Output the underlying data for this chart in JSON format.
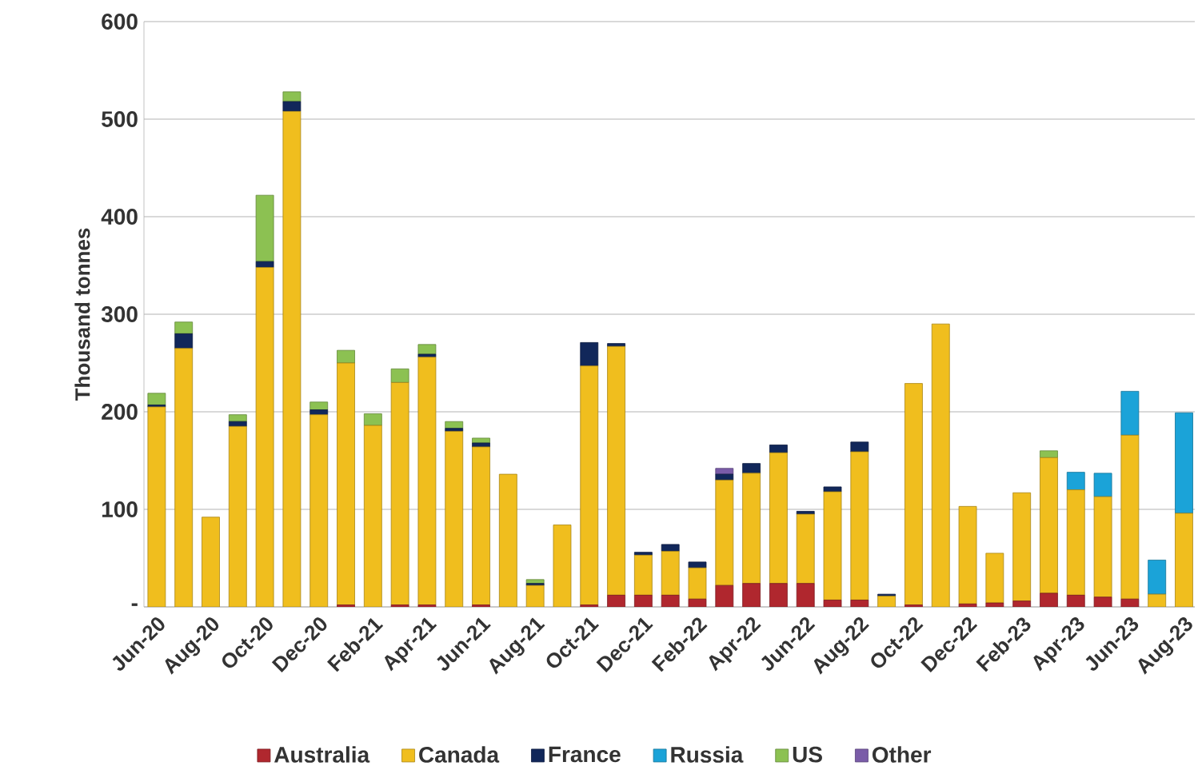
{
  "chart_data": {
    "type": "bar",
    "stacked": true,
    "ylabel": "Thousand tonnes",
    "categories": [
      "Jun-20",
      null,
      "Aug-20",
      null,
      "Oct-20",
      null,
      "Dec-20",
      null,
      "Feb-21",
      null,
      "Apr-21",
      null,
      "Jun-21",
      null,
      "Aug-21",
      null,
      "Oct-21",
      null,
      "Dec-21",
      null,
      "Feb-22",
      null,
      "Apr-22",
      null,
      "Jun-22",
      null,
      "Aug-22",
      null,
      "Oct-22",
      null,
      "Dec-22",
      null,
      "Feb-23",
      null,
      "Apr-23",
      null,
      "Jun-23",
      null,
      "Aug-23"
    ],
    "series": [
      {
        "name": "Australia",
        "color": "#b0272e",
        "values": [
          0,
          0,
          0,
          0,
          0,
          0,
          0,
          2,
          0,
          2,
          2,
          0,
          2,
          0,
          0,
          0,
          2,
          12,
          12,
          12,
          8,
          22,
          24,
          24,
          24,
          7,
          7,
          0,
          2,
          0,
          3,
          4,
          6,
          14,
          12,
          10,
          8,
          0,
          0
        ]
      },
      {
        "name": "Canada",
        "color": "#f0be1e",
        "values": [
          205,
          265,
          92,
          185,
          348,
          508,
          197,
          248,
          186,
          228,
          254,
          180,
          162,
          136,
          22,
          84,
          245,
          255,
          41,
          45,
          32,
          108,
          113,
          134,
          71,
          111,
          152,
          11,
          227,
          290,
          100,
          51,
          111,
          139,
          108,
          103,
          168,
          13,
          96
        ]
      },
      {
        "name": "France",
        "color": "#11275a",
        "values": [
          2,
          15,
          0,
          5,
          6,
          10,
          5,
          0,
          0,
          0,
          3,
          3,
          4,
          0,
          2,
          0,
          24,
          3,
          3,
          7,
          6,
          6,
          10,
          8,
          3,
          5,
          10,
          2,
          0,
          0,
          0,
          0,
          0,
          0,
          0,
          0,
          0,
          0,
          0
        ]
      },
      {
        "name": "Russia",
        "color": "#1ba3d8",
        "values": [
          0,
          0,
          0,
          0,
          0,
          0,
          0,
          0,
          0,
          0,
          0,
          0,
          0,
          0,
          0,
          0,
          0,
          0,
          0,
          0,
          0,
          0,
          0,
          0,
          0,
          0,
          0,
          0,
          0,
          0,
          0,
          0,
          0,
          0,
          18,
          24,
          45,
          35,
          103
        ]
      },
      {
        "name": "US",
        "color": "#8cc152",
        "values": [
          12,
          12,
          0,
          7,
          68,
          10,
          8,
          13,
          12,
          14,
          10,
          7,
          5,
          0,
          4,
          0,
          0,
          0,
          0,
          0,
          0,
          0,
          0,
          0,
          0,
          0,
          0,
          0,
          0,
          0,
          0,
          0,
          0,
          7,
          0,
          0,
          0,
          0,
          0
        ]
      },
      {
        "name": "Other",
        "color": "#7a5ca8",
        "values": [
          0,
          0,
          0,
          0,
          0,
          0,
          0,
          0,
          0,
          0,
          0,
          0,
          0,
          0,
          0,
          0,
          0,
          0,
          0,
          0,
          0,
          6,
          0,
          0,
          0,
          0,
          0,
          0,
          0,
          0,
          0,
          0,
          0,
          0,
          0,
          0,
          0,
          0,
          0
        ]
      }
    ],
    "ylim": [
      0,
      600
    ],
    "yticks": [
      {
        "value": 0,
        "label": "-"
      },
      100,
      200,
      300,
      400,
      500,
      600
    ],
    "grid": "y",
    "legend": "bottom"
  }
}
